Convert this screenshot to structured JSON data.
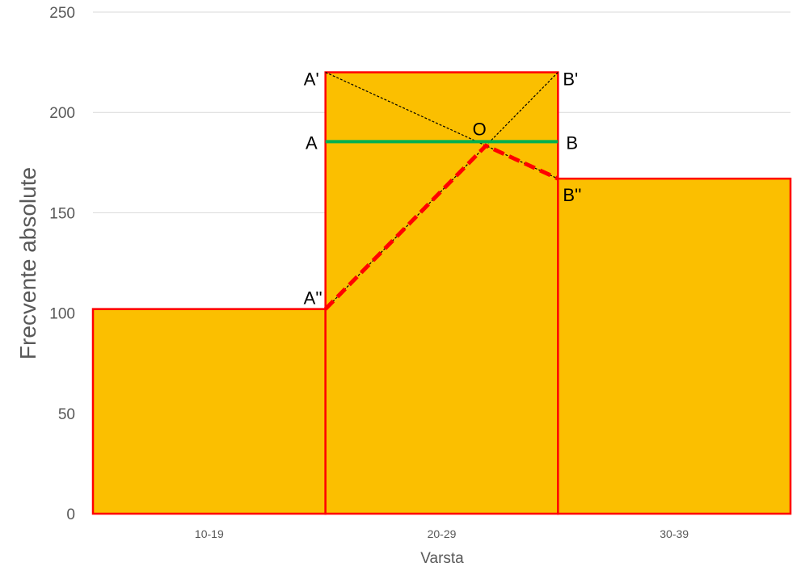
{
  "chart_data": {
    "type": "bar",
    "title": "",
    "xlabel": "Varsta",
    "ylabel": "Frecvente absolute",
    "categories": [
      "10-19",
      "20-29",
      "30-39"
    ],
    "values": [
      102,
      220,
      167
    ],
    "ylim": [
      0,
      250
    ],
    "yticks": [
      0,
      50,
      100,
      150,
      200,
      250
    ],
    "grid": true,
    "legend": "none",
    "bar_gap": 0,
    "colors": {
      "bar_fill": "#FBBF00",
      "bar_edge": "#FF0000",
      "mode_line": "#00B050",
      "construction": "#000000",
      "polyline": "#FF0000",
      "grid": "#D9D9D9"
    },
    "annotations": {
      "A_prime": "A'",
      "B_prime": "B'",
      "A": "A",
      "B": "B",
      "O": "O",
      "A_double": "A''",
      "B_double": "B''"
    }
  }
}
